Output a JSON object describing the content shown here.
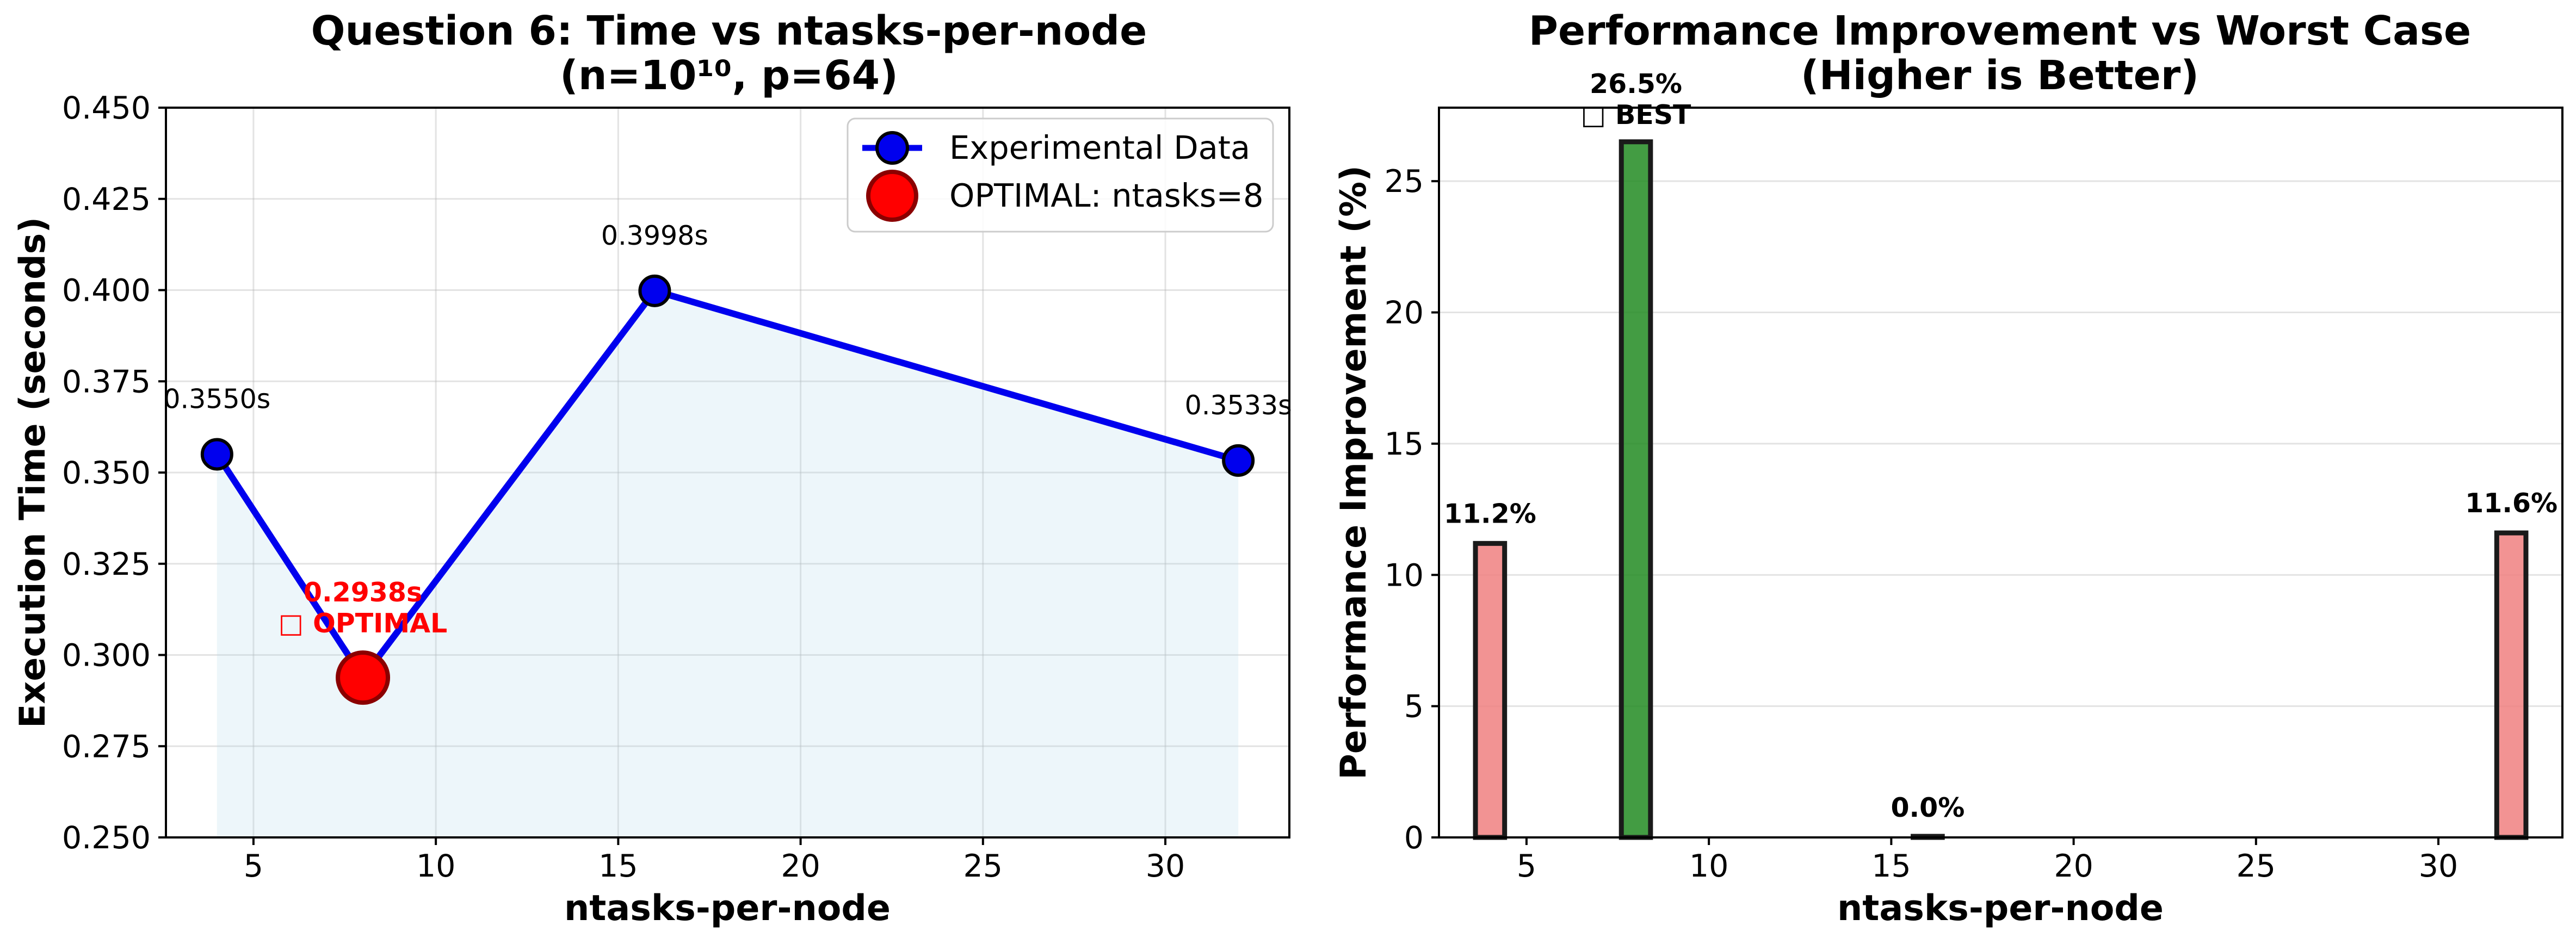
{
  "chart_data": [
    {
      "type": "line",
      "title_line1": "Question 6: Time vs ntasks-per-node",
      "title_line2": "(n=10¹⁰, p=64)",
      "xlabel": "ntasks-per-node",
      "ylabel": "Execution Time (seconds)",
      "xlim": [
        2.6,
        33.4
      ],
      "ylim": [
        0.25,
        0.45
      ],
      "xticks": [
        5,
        10,
        15,
        20,
        25,
        30
      ],
      "yticks": [
        0.25,
        0.275,
        0.3,
        0.325,
        0.35,
        0.375,
        0.4,
        0.425,
        0.45
      ],
      "ytick_labels": [
        "0.250",
        "0.275",
        "0.300",
        "0.325",
        "0.350",
        "0.375",
        "0.400",
        "0.425",
        "0.450"
      ],
      "grid": true,
      "legend_position": "top-right",
      "series": [
        {
          "name": "Experimental Data",
          "x": [
            4,
            8,
            16,
            32
          ],
          "y": [
            0.355,
            0.2938,
            0.3998,
            0.3533
          ],
          "labels": [
            "0.3550s",
            "0.2938s",
            "0.3998s",
            "0.3533s"
          ],
          "color": "#0000ee",
          "fill_color": "#add8e6"
        },
        {
          "name": "OPTIMAL: ntasks=8",
          "x": [
            8
          ],
          "y": [
            0.2938
          ],
          "color": "#ff0000"
        }
      ],
      "annotation": {
        "x": 8,
        "y": 0.2938,
        "line1": "0.2938s",
        "line2": "□ OPTIMAL",
        "color": "#ff0000"
      }
    },
    {
      "type": "bar",
      "title_line1": "Performance Improvement vs Worst Case",
      "title_line2": "(Higher is Better)",
      "xlabel": "ntasks-per-node",
      "ylabel": "Performance Improvement (%)",
      "xlim": [
        2.6,
        33.4
      ],
      "ylim": [
        0,
        27.8
      ],
      "xticks": [
        5,
        10,
        15,
        20,
        25,
        30
      ],
      "yticks": [
        0,
        5,
        10,
        15,
        20,
        25
      ],
      "grid": true,
      "x": [
        4,
        8,
        16,
        32
      ],
      "values": [
        11.2,
        26.5,
        0.0,
        11.6
      ],
      "labels": [
        "11.2%",
        "26.5%",
        "0.0%",
        "11.6%"
      ],
      "best_note": "□ BEST",
      "colors": [
        "#f08080",
        "#228b22",
        "#f08080",
        "#f08080"
      ]
    }
  ]
}
